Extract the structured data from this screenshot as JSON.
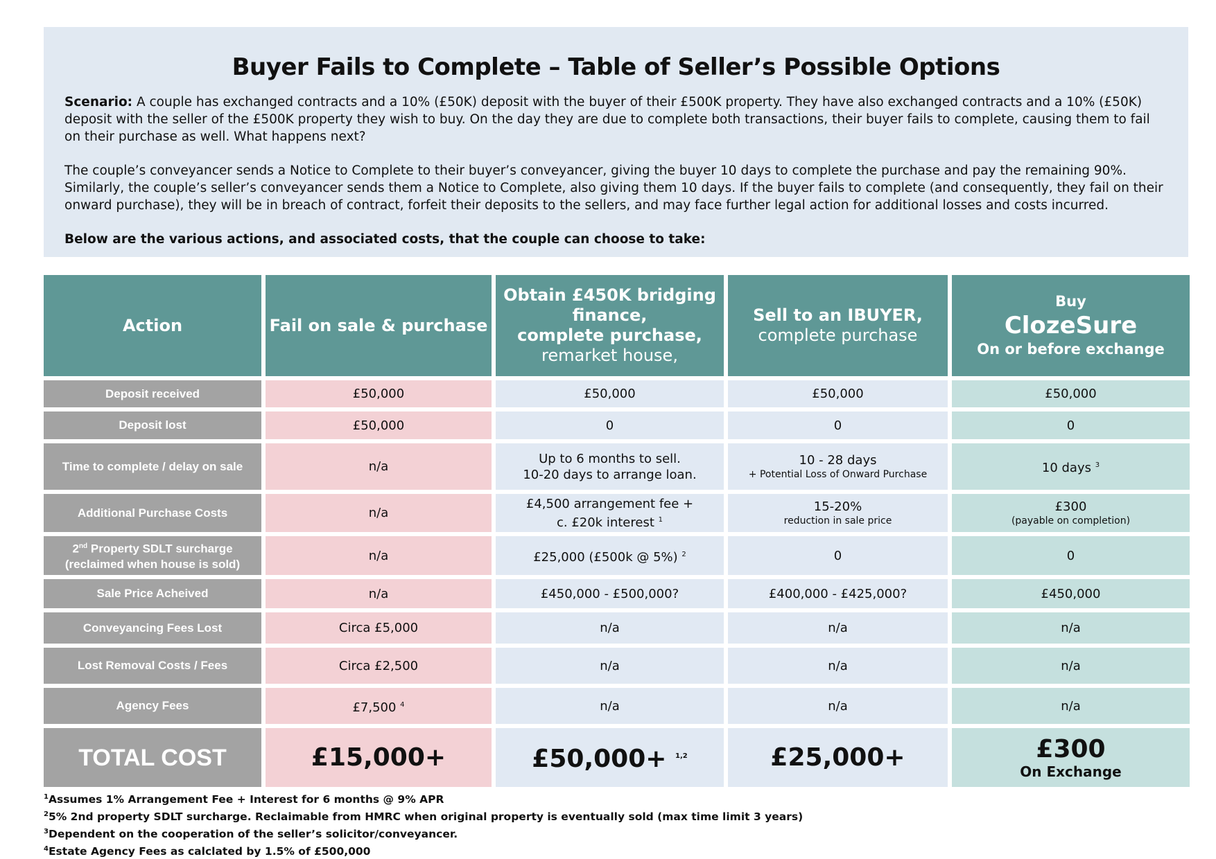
{
  "header": {
    "title": "Buyer Fails to Complete – Table of Seller’s Possible Options",
    "scenario_label": "Scenario:",
    "scenario": "A couple has exchanged contracts and a 10% (£50K) deposit with the buyer of their £500K property. They have also exchanged contracts and a 10% (£50K) deposit with the seller of the £500K property they wish to buy. On the day they are due to complete both transactions, their buyer fails to complete, causing them to fail on their purchase as well. What happens next?",
    "paragraph": "The couple’s conveyancer sends a Notice to Complete to their buyer’s conveyancer, giving the buyer 10 days to complete the purchase and pay the remaining 90%. Similarly, the couple’s seller’s conveyancer sends them a Notice to Complete, also giving them 10 days. If the buyer fails to complete (and consequently, they fail on their onward purchase), they will be in breach of contract, forfeit their deposits to the sellers, and may face further legal action for additional losses and costs incurred.",
    "lead_in": "Below are the various actions, and associated costs, that the couple can choose to take:"
  },
  "table": {
    "columns": [
      {
        "bold": [
          "Action"
        ]
      },
      {
        "bold": [
          "Fail on sale & purchase"
        ]
      },
      {
        "bold": [
          "Obtain £450K bridging finance,",
          "complete purchase,"
        ],
        "normal": [
          "remarket house,"
        ]
      },
      {
        "bold": [
          "Sell to an IBUYER,"
        ],
        "normal": [
          "complete purchase"
        ]
      },
      {
        "pre": "Buy",
        "big": "ClozeSure",
        "post": "On or before exchange"
      }
    ],
    "rows": [
      {
        "label": "Deposit received",
        "cells": [
          {
            "lines": [
              "£50,000"
            ]
          },
          {
            "lines": [
              "£50,000"
            ]
          },
          {
            "lines": [
              "£50,000"
            ]
          },
          {
            "lines": [
              "£50,000"
            ]
          }
        ]
      },
      {
        "label": "Deposit lost",
        "cells": [
          {
            "lines": [
              "£50,000"
            ]
          },
          {
            "lines": [
              "0"
            ]
          },
          {
            "lines": [
              "0"
            ]
          },
          {
            "lines": [
              "0"
            ]
          }
        ]
      },
      {
        "label": "Time to complete / delay on sale",
        "cells": [
          {
            "lines": [
              "n/a"
            ]
          },
          {
            "lines": [
              "Up to 6 months to sell.",
              "10-20 days to arrange loan."
            ]
          },
          {
            "lines": [
              "10 - 28 days"
            ],
            "small": [
              "+ Potential Loss of Onward Purchase"
            ]
          },
          {
            "lines": [
              "10 days"
            ],
            "sup": "3"
          }
        ]
      },
      {
        "label": "Additional Purchase Costs",
        "cells": [
          {
            "lines": [
              "n/a"
            ]
          },
          {
            "lines": [
              "£4,500 arrangement fee +",
              "c. £20k interest"
            ],
            "sup": "1"
          },
          {
            "lines": [
              "15-20%"
            ],
            "small": [
              "reduction in sale price"
            ]
          },
          {
            "lines": [
              "£300"
            ],
            "small": [
              "(payable on completion)"
            ]
          }
        ]
      },
      {
        "label_pre": "2",
        "label_sup": "nd",
        "label": " Property SDLT surcharge (reclaimed when house is sold)",
        "cells": [
          {
            "lines": [
              "n/a"
            ]
          },
          {
            "lines": [
              "£25,000 (£500k @ 5%)"
            ],
            "sup": "2"
          },
          {
            "lines": [
              "0"
            ]
          },
          {
            "lines": [
              "0"
            ]
          }
        ]
      },
      {
        "label": "Sale Price Acheived",
        "cells": [
          {
            "lines": [
              "n/a"
            ]
          },
          {
            "lines": [
              "£450,000 - £500,000?"
            ]
          },
          {
            "lines": [
              "£400,000 - £425,000?"
            ]
          },
          {
            "lines": [
              "£450,000"
            ]
          }
        ]
      },
      {
        "label": "Conveyancing Fees Lost",
        "cells": [
          {
            "lines": [
              "Circa £5,000"
            ]
          },
          {
            "lines": [
              "n/a"
            ]
          },
          {
            "lines": [
              "n/a"
            ]
          },
          {
            "lines": [
              "n/a"
            ]
          }
        ]
      },
      {
        "label": "Lost Removal Costs / Fees",
        "cells": [
          {
            "lines": [
              "Circa £2,500"
            ]
          },
          {
            "lines": [
              "n/a"
            ]
          },
          {
            "lines": [
              "n/a"
            ]
          },
          {
            "lines": [
              "n/a"
            ]
          }
        ]
      },
      {
        "label": "Agency Fees",
        "cells": [
          {
            "lines": [
              "£7,500"
            ],
            "sup": "4"
          },
          {
            "lines": [
              "n/a"
            ]
          },
          {
            "lines": [
              "n/a"
            ]
          },
          {
            "lines": [
              "n/a"
            ]
          }
        ]
      },
      {
        "label": "TOTAL COST",
        "total": true,
        "cells": [
          {
            "lines": [
              "£15,000+"
            ]
          },
          {
            "lines": [
              "£50,000+"
            ],
            "sup": "1,2"
          },
          {
            "lines": [
              "£25,000+"
            ]
          },
          {
            "lines": [
              "£300"
            ],
            "small": [
              "On Exchange"
            ]
          }
        ]
      }
    ]
  },
  "footnotes": [
    {
      "mark": "1",
      "text": "Assumes 1% Arrangement Fee + Interest for 6 months @ 9% APR"
    },
    {
      "mark": "2",
      "text": "5% 2nd property SDLT surcharge. Reclaimable from HMRC when original property is eventually sold (max time limit 3 years)"
    },
    {
      "mark": "3",
      "text": "Dependent on the cooperation of the seller’s solicitor/conveyancer."
    },
    {
      "mark": "4",
      "text": "Estate Agency Fees as calclated by 1.5% of £500,000"
    }
  ]
}
